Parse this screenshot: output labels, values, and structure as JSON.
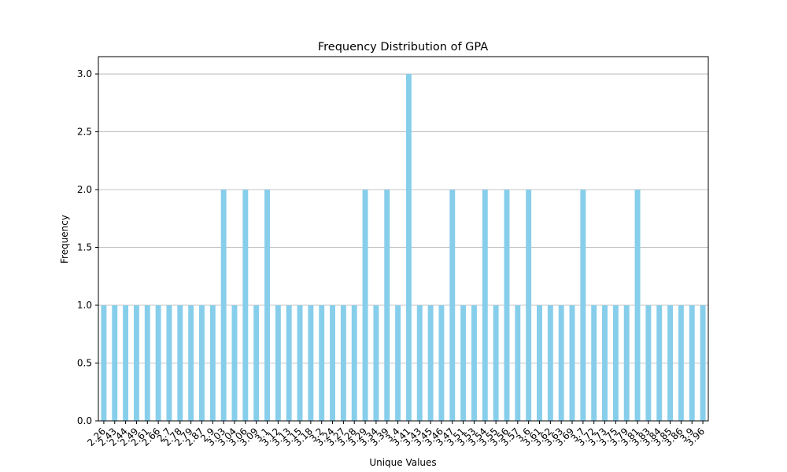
{
  "chart_data": {
    "type": "bar",
    "title": "Frequency Distribution of GPA",
    "xlabel": "Unique Values",
    "ylabel": "Frequency",
    "ylim": [
      0,
      3.15
    ],
    "yticks": [
      "0.0",
      "0.5",
      "1.0",
      "1.5",
      "2.0",
      "2.5",
      "3.0"
    ],
    "grid": "y-major",
    "bar_color": "#87ceeb",
    "categories": [
      "2.26",
      "2.43",
      "2.44",
      "2.49",
      "2.61",
      "2.66",
      "2.7",
      "2.78",
      "2.79",
      "2.87",
      "2.9",
      "3.03",
      "3.04",
      "3.06",
      "3.09",
      "3.1",
      "3.12",
      "3.13",
      "3.15",
      "3.18",
      "3.2",
      "3.24",
      "3.27",
      "3.28",
      "3.29",
      "3.34",
      "3.39",
      "3.4",
      "3.41",
      "3.43",
      "3.45",
      "3.46",
      "3.47",
      "3.51",
      "3.53",
      "3.54",
      "3.55",
      "3.56",
      "3.57",
      "3.6",
      "3.61",
      "3.62",
      "3.63",
      "3.69",
      "3.7",
      "3.72",
      "3.73",
      "3.75",
      "3.79",
      "3.81",
      "3.83",
      "3.84",
      "3.85",
      "3.86",
      "3.9",
      "3.96"
    ],
    "values": [
      1,
      1,
      1,
      1,
      1,
      1,
      1,
      1,
      1,
      1,
      1,
      2,
      1,
      2,
      1,
      2,
      1,
      1,
      1,
      1,
      1,
      1,
      1,
      1,
      2,
      1,
      2,
      1,
      3,
      1,
      1,
      1,
      2,
      1,
      1,
      2,
      1,
      2,
      1,
      2,
      1,
      1,
      1,
      1,
      2,
      1,
      1,
      1,
      1,
      2,
      1,
      1,
      1,
      1,
      1,
      1
    ]
  }
}
